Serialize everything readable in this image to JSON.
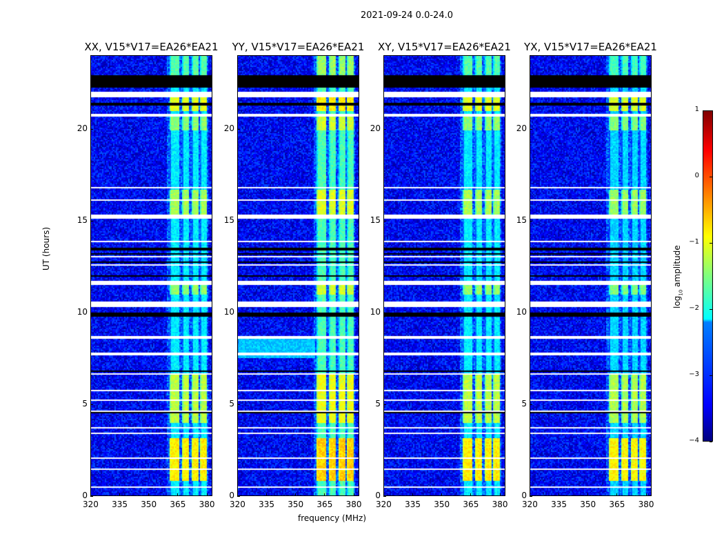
{
  "chart_data": {
    "type": "heatmap",
    "suptitle": "2021-09-24 0.0-24.0",
    "xlabel": "frequency (MHz)",
    "ylabel": "UT (hours)",
    "xlim": [
      320,
      383
    ],
    "ylim": [
      0,
      24
    ],
    "xticks": [
      "320",
      "335",
      "350",
      "365",
      "380"
    ],
    "yticks": [
      "0",
      "5",
      "10",
      "15",
      "20"
    ],
    "panels": [
      {
        "title": "XX, V15*V17=EA26*EA21",
        "band_boost": 1.0,
        "broadband": null
      },
      {
        "title": "YY, V15*V17=EA26*EA21",
        "band_boost": 1.25,
        "broadband": [
          7.5,
          8.7
        ]
      },
      {
        "title": "XY, V15*V17=EA26*EA21",
        "band_boost": 1.0,
        "broadband": null
      },
      {
        "title": "YX, V15*V17=EA26*EA21",
        "band_boost": 0.95,
        "broadband": null
      }
    ],
    "background_log_amplitude": -3.4,
    "rfi_channels_mhz": [
      [
        361,
        366
      ],
      [
        367,
        371
      ],
      [
        372,
        376
      ],
      [
        376.5,
        380
      ]
    ],
    "rfi_hour_levels": [
      {
        "hours": [
          21.0,
          22.0
        ],
        "level": -1.0
      },
      {
        "hours": [
          20.0,
          20.7
        ],
        "level": -1.4
      },
      {
        "hours": [
          15.3,
          16.7
        ],
        "level": -1.3
      },
      {
        "hours": [
          11.0,
          11.6
        ],
        "level": -1.4
      },
      {
        "hours": [
          4.0,
          6.7
        ],
        "level": -1.2
      },
      {
        "hours": [
          0.8,
          3.2
        ],
        "level": -0.8
      },
      {
        "hours": [
          22.6,
          24.0
        ],
        "level": -1.7
      }
    ],
    "rfi_default_level": -2.2,
    "flagged_white_hours": [
      [
        21.8,
        22.05
      ],
      [
        20.75,
        20.9
      ],
      [
        18.65,
        18.7
      ],
      [
        17.6,
        17.65
      ],
      [
        17.75,
        17.8
      ],
      [
        17.9,
        17.95
      ],
      [
        18.05,
        18.1
      ],
      [
        16.8,
        16.85
      ],
      [
        16.15,
        16.2
      ],
      [
        15.65,
        15.7
      ],
      [
        15.18,
        15.38
      ],
      [
        13.9,
        13.95
      ],
      [
        13.3,
        13.35
      ],
      [
        13.05,
        13.1
      ],
      [
        12.6,
        12.65
      ],
      [
        11.5,
        11.78
      ],
      [
        10.3,
        10.6
      ],
      [
        8.6,
        8.75
      ],
      [
        7.65,
        7.85
      ],
      [
        6.65,
        6.7
      ],
      [
        5.75,
        5.8
      ],
      [
        5.2,
        5.3
      ],
      [
        4.6,
        4.65
      ],
      [
        3.7,
        3.75
      ],
      [
        3.4,
        3.45
      ],
      [
        3.0,
        3.05
      ],
      [
        2.05,
        2.1
      ],
      [
        1.45,
        1.5
      ],
      [
        0.45,
        0.5
      ]
    ],
    "no_data_black_hours": [
      [
        22.3,
        22.95
      ],
      [
        21.3,
        21.45
      ],
      [
        13.45,
        13.55
      ],
      [
        13.15,
        13.25
      ],
      [
        12.75,
        12.8
      ],
      [
        12.0,
        12.05
      ],
      [
        9.8,
        10.05
      ],
      [
        6.8,
        6.85
      ],
      [
        4.5,
        4.6
      ],
      [
        3.6,
        3.65
      ],
      [
        0.05,
        0.1
      ]
    ],
    "colorbar": {
      "label": "log10 amplitude",
      "label_main": "log",
      "label_sub": "10",
      "label_rest": " amplitude",
      "range": [
        -4,
        1
      ],
      "ticks": [
        "1",
        "0",
        "−1",
        "−2",
        "−3",
        "−4"
      ],
      "colormap": "jet"
    }
  }
}
